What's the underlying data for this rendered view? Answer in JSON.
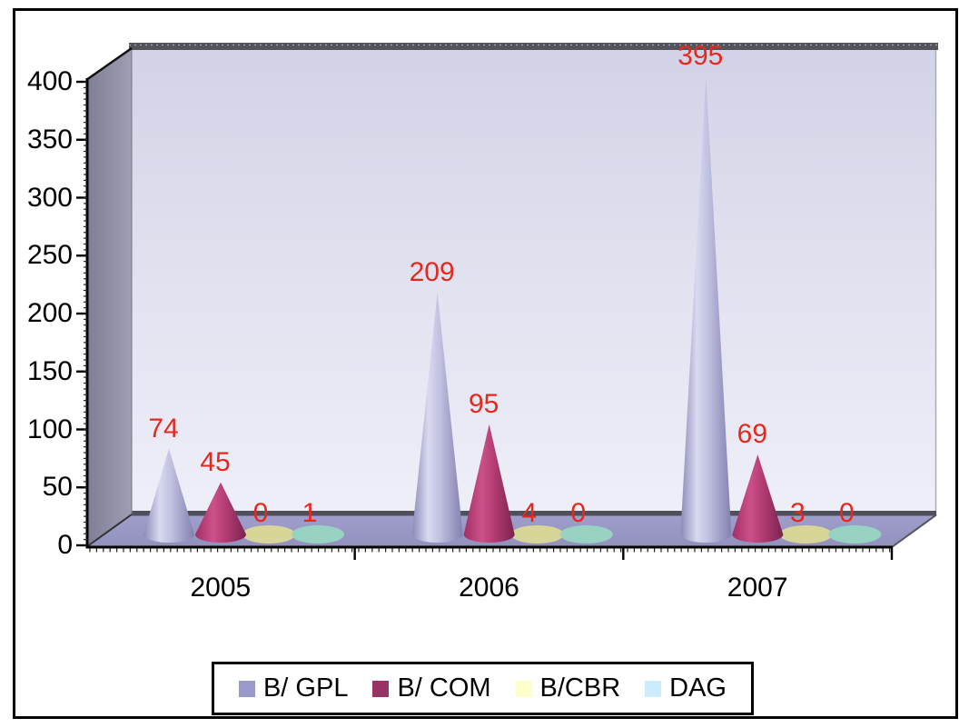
{
  "chart_data": {
    "type": "bar",
    "subtype": "3d-cone",
    "title": "",
    "xlabel": "",
    "ylabel": "",
    "categories": [
      "2005",
      "2006",
      "2007"
    ],
    "series": [
      {
        "name": "B/ GPL",
        "color": "#9999CC",
        "values": [
          74,
          209,
          395
        ]
      },
      {
        "name": "B/ COM",
        "color": "#993366",
        "values": [
          45,
          95,
          69
        ]
      },
      {
        "name": "B/CBR",
        "color": "#FFFFCC",
        "values": [
          0,
          4,
          3
        ]
      },
      {
        "name": "DAG",
        "color": "#CCECFF",
        "values": [
          1,
          0,
          0
        ]
      }
    ],
    "ylim": [
      0,
      400
    ],
    "yticks": [
      0,
      50,
      100,
      150,
      200,
      250,
      300,
      350,
      400
    ],
    "grid": false,
    "legend_position": "bottom",
    "data_labels": true,
    "data_label_color": "#E6281E"
  },
  "styles": {
    "background": "#FFFFFF",
    "frame_border": "#000000",
    "floor_ellipse_colors": {
      "B/CBR": "#D8D599",
      "DAG": "#97D2C3"
    }
  }
}
